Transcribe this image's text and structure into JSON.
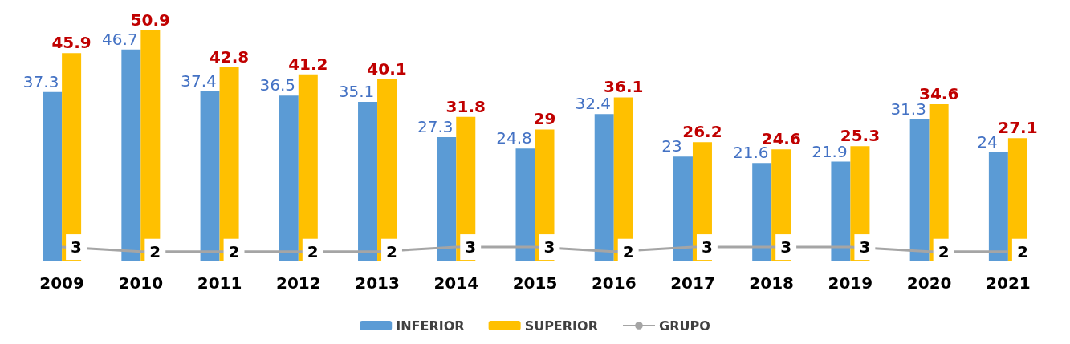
{
  "chart_data": {
    "type": "bar",
    "categories": [
      "2009",
      "2010",
      "2011",
      "2012",
      "2013",
      "2014",
      "2015",
      "2016",
      "2017",
      "2018",
      "2019",
      "2020",
      "2021"
    ],
    "series": [
      {
        "name": "INFERIOR",
        "color": "#5b9bd5",
        "values": [
          37.3,
          46.7,
          37.4,
          36.5,
          35.1,
          27.3,
          24.8,
          32.4,
          23,
          21.6,
          21.9,
          31.3,
          24
        ]
      },
      {
        "name": "SUPERIOR",
        "color": "#ffc000",
        "values": [
          45.9,
          50.9,
          42.8,
          41.2,
          40.1,
          31.8,
          29,
          36.1,
          26.2,
          24.6,
          25.3,
          34.6,
          27.1
        ]
      },
      {
        "name": "GRUPO",
        "type": "line",
        "color": "#a5a5a5",
        "values": [
          3,
          2,
          2,
          2,
          2,
          3,
          3,
          2,
          3,
          3,
          3,
          2,
          2
        ]
      }
    ],
    "data_labels": true,
    "legend": "bottom",
    "grid": false,
    "marker": "none"
  }
}
